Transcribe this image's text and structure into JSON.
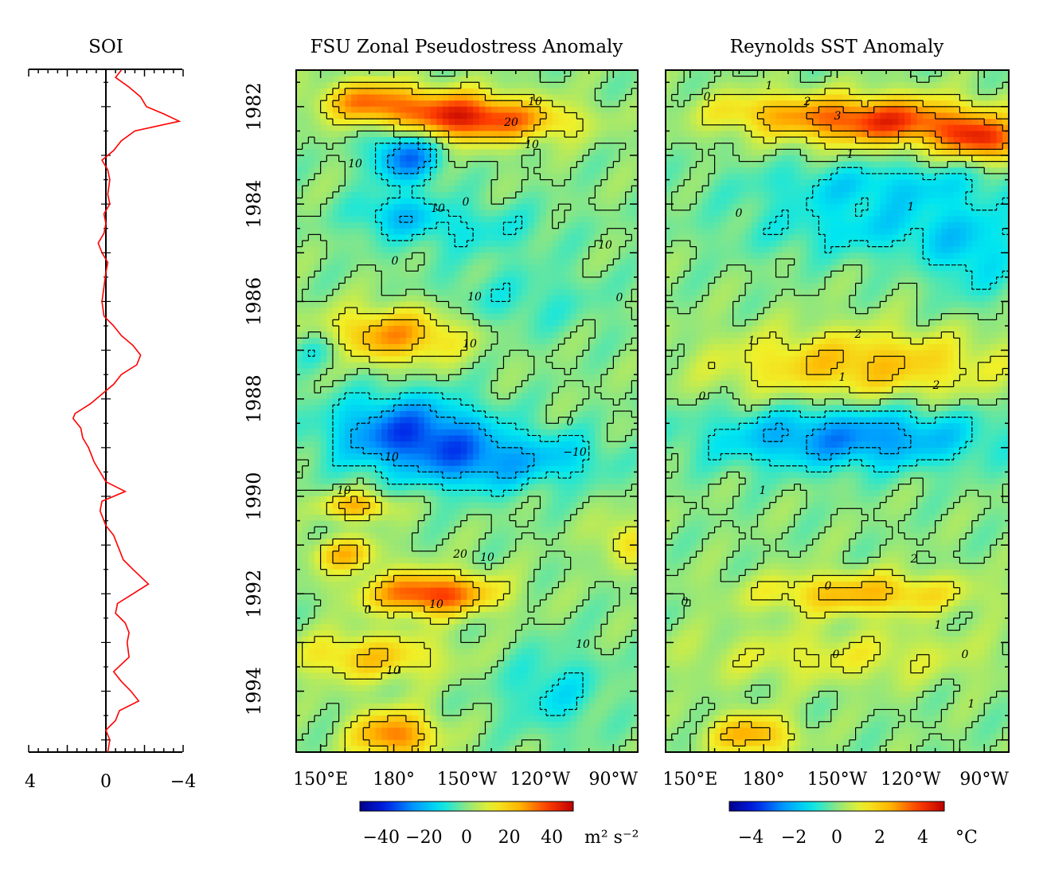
{
  "panels": {
    "soi": {
      "title": "SOI",
      "xticks": [
        "4",
        "0",
        "−4"
      ]
    },
    "fsu": {
      "title": "FSU Zonal Pseudostress Anomaly",
      "xticks": [
        "150°E",
        "180°",
        "150°W",
        "120°W",
        "90°W"
      ],
      "colorbar": {
        "ticks": [
          "−40",
          "−20",
          "0",
          "20",
          "40"
        ],
        "range": [
          -50,
          50
        ],
        "units": "m² s⁻²"
      },
      "contour_labels": [
        "10",
        "20",
        "10",
        "10",
        "10",
        "0",
        "0",
        "10",
        "0",
        "10",
        "0",
        "−10",
        "10",
        "10",
        "20",
        "10",
        "10",
        "10",
        "10",
        "10",
        "0"
      ]
    },
    "sst": {
      "title": "Reynolds SST Anomaly",
      "xticks": [
        "150°E",
        "180°",
        "150°W",
        "120°W",
        "90°W"
      ],
      "colorbar": {
        "ticks": [
          "−4",
          "−2",
          "0",
          "2",
          "4"
        ],
        "range": [
          -5,
          5
        ],
        "units": "°C"
      },
      "contour_labels": [
        "1",
        "0",
        "2",
        "3",
        "1",
        "0",
        "1",
        "2",
        "1",
        "1",
        "2",
        "0",
        "1",
        "2",
        "0",
        "0",
        "1",
        "0",
        "0",
        "1"
      ]
    }
  },
  "year_ticks": [
    "1982",
    "1984",
    "1986",
    "1988",
    "1990",
    "1992",
    "1994"
  ],
  "colors": {
    "soi_line": "#ff0000"
  },
  "chart_data": [
    {
      "type": "line",
      "title": "SOI",
      "orientation": "vertical-time",
      "y_axis": "year",
      "ylim": [
        1981.25,
        1995.25
      ],
      "xlim": [
        4,
        -4
      ],
      "x_tick_values": [
        4,
        0,
        -4
      ],
      "series": [
        {
          "points": [
            [
              1981.25,
              -0.8
            ],
            [
              1981.4,
              -0.5
            ],
            [
              1981.6,
              -1.2
            ],
            [
              1981.8,
              -1.8
            ],
            [
              1982.0,
              -2.1
            ],
            [
              1982.15,
              -3.0
            ],
            [
              1982.3,
              -3.8
            ],
            [
              1982.5,
              -1.5
            ],
            [
              1982.7,
              -0.8
            ],
            [
              1982.9,
              -0.4
            ],
            [
              1983.1,
              0.2
            ],
            [
              1983.3,
              -0.1
            ],
            [
              1983.5,
              -0.2
            ],
            [
              1983.8,
              -0.1
            ],
            [
              1984.0,
              -0.2
            ],
            [
              1984.2,
              0.1
            ],
            [
              1984.4,
              0.0
            ],
            [
              1984.6,
              0.1
            ],
            [
              1984.8,
              0.4
            ],
            [
              1985.0,
              0.2
            ],
            [
              1985.2,
              -0.1
            ],
            [
              1985.4,
              0.0
            ],
            [
              1985.7,
              0.1
            ],
            [
              1986.0,
              0.2
            ],
            [
              1986.3,
              0.1
            ],
            [
              1986.5,
              -0.4
            ],
            [
              1986.7,
              -0.8
            ],
            [
              1986.9,
              -1.4
            ],
            [
              1987.1,
              -1.8
            ],
            [
              1987.3,
              -1.6
            ],
            [
              1987.5,
              -0.8
            ],
            [
              1987.7,
              -0.4
            ],
            [
              1987.9,
              0.2
            ],
            [
              1988.1,
              0.8
            ],
            [
              1988.3,
              1.6
            ],
            [
              1988.4,
              1.7
            ],
            [
              1988.6,
              1.3
            ],
            [
              1988.8,
              1.2
            ],
            [
              1989.0,
              0.9
            ],
            [
              1989.3,
              0.6
            ],
            [
              1989.5,
              0.3
            ],
            [
              1989.7,
              0.0
            ],
            [
              1989.9,
              -1.0
            ],
            [
              1990.1,
              0.2
            ],
            [
              1990.3,
              0.3
            ],
            [
              1990.6,
              0.0
            ],
            [
              1990.8,
              -0.4
            ],
            [
              1991.1,
              -0.7
            ],
            [
              1991.3,
              -0.9
            ],
            [
              1991.5,
              -1.4
            ],
            [
              1991.8,
              -2.2
            ],
            [
              1992.0,
              -1.4
            ],
            [
              1992.2,
              -0.6
            ],
            [
              1992.4,
              -0.5
            ],
            [
              1992.6,
              -1.0
            ],
            [
              1992.8,
              -1.2
            ],
            [
              1993.0,
              -1.1
            ],
            [
              1993.3,
              -1.2
            ],
            [
              1993.6,
              -0.4
            ],
            [
              1993.8,
              -0.8
            ],
            [
              1994.0,
              -1.3
            ],
            [
              1994.2,
              -1.7
            ],
            [
              1994.4,
              -0.7
            ],
            [
              1994.6,
              -0.5
            ],
            [
              1994.8,
              0.0
            ],
            [
              1995.0,
              -0.2
            ],
            [
              1995.25,
              -0.1
            ]
          ]
        }
      ]
    },
    {
      "type": "heatmap",
      "title": "FSU Zonal Pseudostress Anomaly",
      "x_axis": "longitude",
      "x_ticks": [
        "150°E",
        "180°",
        "150°W",
        "120°W",
        "90°W"
      ],
      "x_tick_lon_e": [
        150,
        180,
        210,
        240,
        270
      ],
      "xlim_lon_e": [
        140,
        280
      ],
      "y_axis": "year",
      "ylim": [
        1981.25,
        1995.25
      ],
      "colorbar_range": [
        -50,
        50
      ],
      "units": "m² s⁻²",
      "features": [
        {
          "lon_e": 205,
          "year": 1982.2,
          "value": 40,
          "sigma_lon": 18,
          "sigma_yr": 0.35
        },
        {
          "lon_e": 170,
          "year": 1981.9,
          "value": 30,
          "sigma_lon": 14,
          "sigma_yr": 0.3
        },
        {
          "lon_e": 235,
          "year": 1982.3,
          "value": 18,
          "sigma_lon": 18,
          "sigma_yr": 0.3
        },
        {
          "lon_e": 185,
          "year": 1983.0,
          "value": -30,
          "sigma_lon": 10,
          "sigma_yr": 0.4
        },
        {
          "lon_e": 180,
          "year": 1984.2,
          "value": -14,
          "sigma_lon": 12,
          "sigma_yr": 0.3
        },
        {
          "lon_e": 180,
          "year": 1986.7,
          "value": 28,
          "sigma_lon": 20,
          "sigma_yr": 0.4
        },
        {
          "lon_e": 150,
          "year": 1987.0,
          "value": -12,
          "sigma_lon": 8,
          "sigma_yr": 0.3
        },
        {
          "lon_e": 185,
          "year": 1988.7,
          "value": -32,
          "sigma_lon": 22,
          "sigma_yr": 0.55
        },
        {
          "lon_e": 215,
          "year": 1989.3,
          "value": -20,
          "sigma_lon": 18,
          "sigma_yr": 0.45
        },
        {
          "lon_e": 250,
          "year": 1989.2,
          "value": -12,
          "sigma_lon": 15,
          "sigma_yr": 0.4
        },
        {
          "lon_e": 165,
          "year": 1990.2,
          "value": 25,
          "sigma_lon": 10,
          "sigma_yr": 0.2
        },
        {
          "lon_e": 160,
          "year": 1991.2,
          "value": 22,
          "sigma_lon": 10,
          "sigma_yr": 0.25
        },
        {
          "lon_e": 275,
          "year": 1990.9,
          "value": 15,
          "sigma_lon": 8,
          "sigma_yr": 0.35
        },
        {
          "lon_e": 195,
          "year": 1992.0,
          "value": 40,
          "sigma_lon": 18,
          "sigma_yr": 0.3
        },
        {
          "lon_e": 170,
          "year": 1993.3,
          "value": 20,
          "sigma_lon": 22,
          "sigma_yr": 0.35
        },
        {
          "lon_e": 245,
          "year": 1994.0,
          "value": -12,
          "sigma_lon": 15,
          "sigma_yr": 0.6
        },
        {
          "lon_e": 180,
          "year": 1994.9,
          "value": 32,
          "sigma_lon": 12,
          "sigma_yr": 0.35
        },
        {
          "lon_e": 230,
          "year": 1986.0,
          "value": -8,
          "sigma_lon": 25,
          "sigma_yr": 0.5
        },
        {
          "lon_e": 210,
          "year": 1984.5,
          "value": -10,
          "sigma_lon": 25,
          "sigma_yr": 0.4
        }
      ]
    },
    {
      "type": "heatmap",
      "title": "Reynolds SST Anomaly",
      "x_axis": "longitude",
      "x_ticks": [
        "150°E",
        "180°",
        "150°W",
        "120°W",
        "90°W"
      ],
      "x_tick_lon_e": [
        150,
        180,
        210,
        240,
        270
      ],
      "xlim_lon_e": [
        140,
        280
      ],
      "y_axis": "year",
      "ylim": [
        1981.25,
        1995.25
      ],
      "colorbar_range": [
        -5,
        5
      ],
      "units": "°C",
      "features": [
        {
          "lon_e": 230,
          "year": 1982.3,
          "value": 4.0,
          "sigma_lon": 28,
          "sigma_yr": 0.35
        },
        {
          "lon_e": 270,
          "year": 1982.7,
          "value": 3.5,
          "sigma_lon": 12,
          "sigma_yr": 0.3
        },
        {
          "lon_e": 180,
          "year": 1982.1,
          "value": 1.5,
          "sigma_lon": 20,
          "sigma_yr": 0.3
        },
        {
          "lon_e": 230,
          "year": 1983.6,
          "value": -1.3,
          "sigma_lon": 40,
          "sigma_yr": 0.35
        },
        {
          "lon_e": 230,
          "year": 1984.5,
          "value": -1.3,
          "sigma_lon": 40,
          "sigma_yr": 0.45
        },
        {
          "lon_e": 220,
          "year": 1987.3,
          "value": 2.2,
          "sigma_lon": 40,
          "sigma_yr": 0.5
        },
        {
          "lon_e": 215,
          "year": 1988.8,
          "value": -2.6,
          "sigma_lon": 40,
          "sigma_yr": 0.45
        },
        {
          "lon_e": 220,
          "year": 1992.0,
          "value": 2.3,
          "sigma_lon": 30,
          "sigma_yr": 0.3
        },
        {
          "lon_e": 210,
          "year": 1993.3,
          "value": 1.1,
          "sigma_lon": 45,
          "sigma_yr": 0.4
        },
        {
          "lon_e": 175,
          "year": 1994.9,
          "value": 2.6,
          "sigma_lon": 12,
          "sigma_yr": 0.3
        },
        {
          "lon_e": 265,
          "year": 1985.2,
          "value": -1.2,
          "sigma_lon": 12,
          "sigma_yr": 0.6
        }
      ]
    }
  ]
}
